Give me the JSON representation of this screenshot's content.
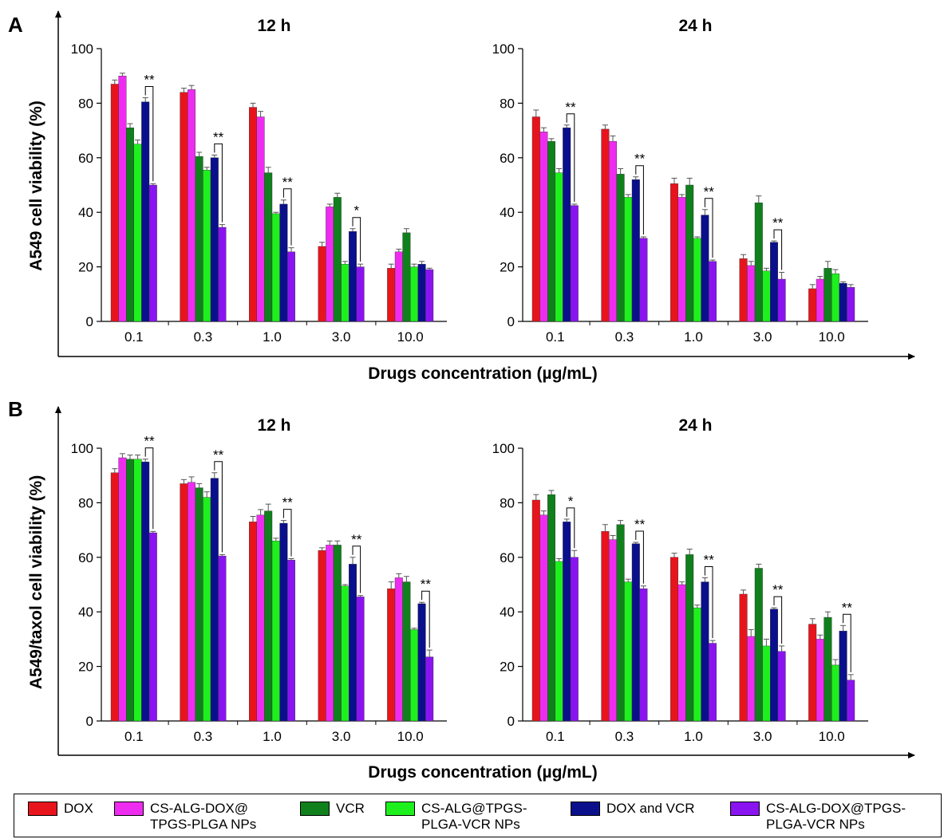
{
  "figure": {
    "panels": [
      {
        "letter": "A",
        "ylabel": "A549 cell viability (%)",
        "xlabel": "Drugs concentration (µg/mL)"
      },
      {
        "letter": "B",
        "ylabel": "A549/taxol cell viability (%)",
        "xlabel": "Drugs concentration (µg/mL)"
      }
    ]
  },
  "legend": {
    "items": [
      {
        "label": "DOX",
        "color": "#e8141c"
      },
      {
        "label": "CS-ALG-DOX@\nTPGS-PLGA NPs",
        "color": "#ee2cf0"
      },
      {
        "label": "VCR",
        "color": "#10801c"
      },
      {
        "label": "CS-ALG@TPGS-\nPLGA-VCR NPs",
        "color": "#1ef01e"
      },
      {
        "label": "DOX and VCR",
        "color": "#0a0f8c"
      },
      {
        "label": "CS-ALG-DOX@TPGS-\nPLGA-VCR NPs",
        "color": "#8a14f0"
      }
    ]
  },
  "chart_data": [
    {
      "type": "bar",
      "panel": "A",
      "title": "12 h",
      "xlabel": "Drugs concentration (µg/mL)",
      "ylabel": "A549 cell viability (%)",
      "ylim": [
        0,
        100
      ],
      "yticks": [
        0,
        20,
        40,
        60,
        80,
        100
      ],
      "categories": [
        "0.1",
        "0.3",
        "1.0",
        "3.0",
        "10.0"
      ],
      "series": [
        {
          "name": "DOX",
          "values": [
            87,
            84,
            78.5,
            27.5,
            19.5
          ],
          "errors": [
            1.5,
            1.5,
            1.5,
            1.5,
            1.5
          ]
        },
        {
          "name": "CS-ALG-DOX@TPGS-PLGA NPs",
          "values": [
            90,
            85,
            75,
            42,
            25.5
          ],
          "errors": [
            1,
            1.5,
            2,
            1,
            1
          ]
        },
        {
          "name": "VCR",
          "values": [
            71,
            60.5,
            54.5,
            45.5,
            32.5
          ],
          "errors": [
            1.5,
            1.5,
            2,
            1.5,
            1.5
          ]
        },
        {
          "name": "CS-ALG@TPGS-PLGA-VCR NPs",
          "values": [
            65,
            55.5,
            39.5,
            21,
            20
          ],
          "errors": [
            1.5,
            1,
            0.5,
            1,
            1
          ]
        },
        {
          "name": "DOX and VCR",
          "values": [
            80.5,
            60,
            43,
            33,
            21
          ],
          "errors": [
            1.5,
            1,
            1.5,
            1,
            1
          ]
        },
        {
          "name": "CS-ALG-DOX@TPGS-PLGA-VCR NPs",
          "values": [
            50,
            34.5,
            25.5,
            20,
            19
          ],
          "errors": [
            0.5,
            1,
            1.5,
            1,
            0.5
          ]
        }
      ],
      "significance": [
        {
          "category": "0.1",
          "label": "**"
        },
        {
          "category": "0.3",
          "label": "**"
        },
        {
          "category": "1.0",
          "label": "**"
        },
        {
          "category": "3.0",
          "label": "*"
        }
      ]
    },
    {
      "type": "bar",
      "panel": "A",
      "title": "24 h",
      "xlabel": "Drugs concentration (µg/mL)",
      "ylabel": "A549 cell viability (%)",
      "ylim": [
        0,
        100
      ],
      "yticks": [
        0,
        20,
        40,
        60,
        80,
        100
      ],
      "categories": [
        "0.1",
        "0.3",
        "1.0",
        "3.0",
        "10.0"
      ],
      "series": [
        {
          "name": "DOX",
          "values": [
            75,
            70.5,
            50.5,
            23,
            12
          ],
          "errors": [
            2.5,
            1.5,
            2,
            1.5,
            1.5
          ]
        },
        {
          "name": "CS-ALG-DOX@TPGS-PLGA NPs",
          "values": [
            69.5,
            66,
            45.5,
            20.5,
            15.5
          ],
          "errors": [
            1.5,
            2,
            1,
            1.5,
            1
          ]
        },
        {
          "name": "VCR",
          "values": [
            66,
            54,
            50,
            43.5,
            19.5
          ],
          "errors": [
            1,
            2,
            2.5,
            2.5,
            2.5
          ]
        },
        {
          "name": "CS-ALG@TPGS-PLGA-VCR NPs",
          "values": [
            54.5,
            45.5,
            30.5,
            18.5,
            17.5
          ],
          "errors": [
            1.5,
            1,
            0.5,
            1,
            1.5
          ]
        },
        {
          "name": "DOX and VCR",
          "values": [
            71,
            52,
            39,
            29,
            14
          ],
          "errors": [
            1,
            1,
            2,
            0.5,
            0.5
          ]
        },
        {
          "name": "CS-ALG-DOX@TPGS-PLGA-VCR NPs",
          "values": [
            42.5,
            30.5,
            22,
            15.5,
            12.5
          ],
          "errors": [
            0.5,
            0.5,
            0.5,
            2.5,
            1
          ]
        }
      ],
      "significance": [
        {
          "category": "0.1",
          "label": "**"
        },
        {
          "category": "0.3",
          "label": "**"
        },
        {
          "category": "1.0",
          "label": "**"
        },
        {
          "category": "3.0",
          "label": "**"
        }
      ]
    },
    {
      "type": "bar",
      "panel": "B",
      "title": "12 h",
      "xlabel": "Drugs concentration (µg/mL)",
      "ylabel": "A549/taxol cell viability (%)",
      "ylim": [
        0,
        100
      ],
      "yticks": [
        0,
        20,
        40,
        60,
        80,
        100
      ],
      "categories": [
        "0.1",
        "0.3",
        "1.0",
        "3.0",
        "10.0"
      ],
      "series": [
        {
          "name": "DOX",
          "values": [
            91,
            87,
            73,
            62.5,
            48.5
          ],
          "errors": [
            1.5,
            1.5,
            2,
            1,
            2.5
          ]
        },
        {
          "name": "CS-ALG-DOX@TPGS-PLGA NPs",
          "values": [
            96.5,
            87.5,
            75.5,
            64.5,
            52.5
          ],
          "errors": [
            1.5,
            2,
            2,
            1.5,
            1.5
          ]
        },
        {
          "name": "VCR",
          "values": [
            96,
            85.5,
            77,
            64.5,
            51
          ],
          "errors": [
            1.5,
            1.5,
            2.5,
            1.5,
            2
          ]
        },
        {
          "name": "CS-ALG@TPGS-PLGA-VCR NPs",
          "values": [
            96,
            82,
            66,
            49.5,
            33.5
          ],
          "errors": [
            1.5,
            2,
            1,
            0.5,
            0.5
          ]
        },
        {
          "name": "DOX and VCR",
          "values": [
            95,
            89,
            72.5,
            57.5,
            43
          ],
          "errors": [
            1,
            2,
            1,
            2.5,
            0.5
          ]
        },
        {
          "name": "CS-ALG-DOX@TPGS-PLGA-VCR NPs",
          "values": [
            69,
            60.5,
            59,
            45.5,
            23.5
          ],
          "errors": [
            0.5,
            0.5,
            0.5,
            0.5,
            2.5
          ]
        }
      ],
      "significance": [
        {
          "category": "0.1",
          "label": "**"
        },
        {
          "category": "0.3",
          "label": "**"
        },
        {
          "category": "1.0",
          "label": "**"
        },
        {
          "category": "3.0",
          "label": "**"
        },
        {
          "category": "10.0",
          "label": "**"
        }
      ]
    },
    {
      "type": "bar",
      "panel": "B",
      "title": "24 h",
      "xlabel": "Drugs concentration (µg/mL)",
      "ylabel": "A549/taxol cell viability (%)",
      "ylim": [
        0,
        100
      ],
      "yticks": [
        0,
        20,
        40,
        60,
        80,
        100
      ],
      "categories": [
        "0.1",
        "0.3",
        "1.0",
        "3.0",
        "10.0"
      ],
      "series": [
        {
          "name": "DOX",
          "values": [
            81,
            69.5,
            60,
            46.5,
            35.5
          ],
          "errors": [
            2,
            2.5,
            1.5,
            1.5,
            2
          ]
        },
        {
          "name": "CS-ALG-DOX@TPGS-PLGA NPs",
          "values": [
            75.5,
            66.5,
            50,
            31,
            30
          ],
          "errors": [
            1.5,
            1.5,
            1,
            2.5,
            1.5
          ]
        },
        {
          "name": "VCR",
          "values": [
            83,
            72,
            61,
            56,
            38
          ],
          "errors": [
            1.5,
            1.5,
            2,
            1.5,
            2
          ]
        },
        {
          "name": "CS-ALG@TPGS-PLGA-VCR NPs",
          "values": [
            58.5,
            51,
            41.5,
            27.5,
            20.5
          ],
          "errors": [
            1,
            1,
            1,
            2.5,
            2
          ]
        },
        {
          "name": "DOX and VCR",
          "values": [
            73,
            65,
            51,
            41,
            33
          ],
          "errors": [
            1,
            0.5,
            1.5,
            0.5,
            2
          ]
        },
        {
          "name": "CS-ALG-DOX@TPGS-PLGA-VCR NPs",
          "values": [
            60,
            48.5,
            28.5,
            25.5,
            15
          ],
          "errors": [
            2.5,
            1,
            1,
            2,
            2
          ]
        }
      ],
      "significance": [
        {
          "category": "0.1",
          "label": "*"
        },
        {
          "category": "0.3",
          "label": "**"
        },
        {
          "category": "1.0",
          "label": "**"
        },
        {
          "category": "3.0",
          "label": "**"
        },
        {
          "category": "10.0",
          "label": "**"
        }
      ]
    }
  ]
}
